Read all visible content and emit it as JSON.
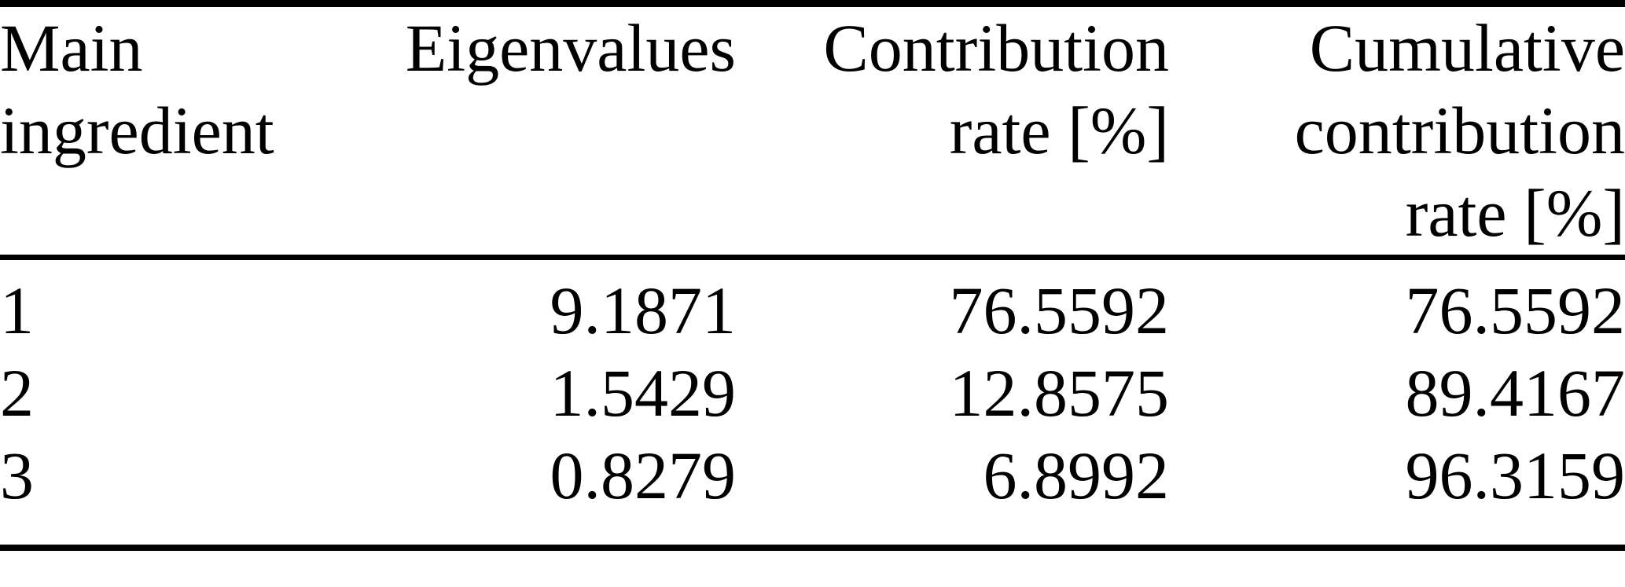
{
  "figure": {
    "kind": "academic-paper-table",
    "background_color": "#ffffff",
    "text_color": "#000000",
    "rule_color": "#000000"
  },
  "table": {
    "headers": [
      {
        "label": "Main\ningredient"
      },
      {
        "label": "Eigenvalues"
      },
      {
        "label": "Contribution\nrate [%]"
      },
      {
        "label": "Cumulative\ncontribution\nrate [%]"
      }
    ],
    "rows": [
      [
        "1",
        "9.1871",
        "76.5592",
        "76.5592"
      ],
      [
        "2",
        "1.5429",
        "12.8575",
        "89.4167"
      ],
      [
        "3",
        "0.8279",
        "6.8992",
        "96.3159"
      ]
    ]
  }
}
